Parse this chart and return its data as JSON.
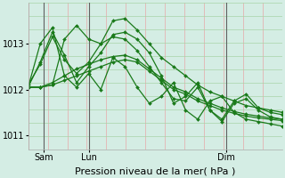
{
  "bg_color": "#d4ede4",
  "grid_color_v": "#e8a8a8",
  "grid_color_h": "#a8d4a8",
  "line_color": "#1a7a1a",
  "marker": "D",
  "markersize": 2.0,
  "linewidth": 0.9,
  "xlabel": "Pression niveau de la mer( hPa )",
  "xlabel_fontsize": 8,
  "tick_fontsize": 7,
  "ylim": [
    1010.7,
    1013.9
  ],
  "yticks": [
    1011,
    1012,
    1013
  ],
  "xlim": [
    0,
    100
  ],
  "xtick_positions": [
    6,
    24,
    78
  ],
  "xtick_labels": [
    "Sam",
    "Lun",
    "Dim"
  ],
  "vline_positions": [
    6,
    24,
    78
  ],
  "n_vgrid": 14,
  "n_hgrid": 12,
  "series": [
    [
      1012.05,
      1012.05,
      1012.1,
      1013.1,
      1013.4,
      1013.1,
      1013.0,
      1013.5,
      1013.55,
      1013.3,
      1013.0,
      1012.7,
      1012.5,
      1012.3,
      1012.1,
      1011.95,
      1011.85,
      1011.75,
      1011.65,
      1011.6,
      1011.55,
      1011.5
    ],
    [
      1012.1,
      1012.55,
      1013.15,
      1012.65,
      1012.35,
      1012.6,
      1013.0,
      1013.15,
      1013.1,
      1012.85,
      1012.5,
      1012.15,
      1011.8,
      1011.75,
      1012.05,
      1011.55,
      1011.3,
      1011.7,
      1011.8,
      1011.55,
      1011.4,
      1011.35
    ],
    [
      1012.05,
      1012.05,
      1012.1,
      1012.2,
      1012.3,
      1012.4,
      1012.5,
      1012.6,
      1012.65,
      1012.6,
      1012.4,
      1012.2,
      1012.0,
      1011.9,
      1011.75,
      1011.65,
      1011.55,
      1011.48,
      1011.42,
      1011.38,
      1011.35,
      1011.32
    ],
    [
      1012.05,
      1012.05,
      1012.15,
      1012.3,
      1012.45,
      1012.55,
      1012.65,
      1012.72,
      1012.75,
      1012.65,
      1012.45,
      1012.25,
      1012.05,
      1011.95,
      1011.8,
      1011.7,
      1011.6,
      1011.52,
      1011.46,
      1011.42,
      1011.38,
      1011.35
    ],
    [
      1012.05,
      1013.0,
      1013.35,
      1012.3,
      1012.05,
      1012.35,
      1012.0,
      1012.7,
      1012.5,
      1012.05,
      1011.7,
      1011.85,
      1012.15,
      1011.55,
      1011.35,
      1011.75,
      1011.85,
      1011.5,
      1011.35,
      1011.3,
      1011.25,
      1011.2
    ],
    [
      1012.05,
      1012.6,
      1013.25,
      1012.75,
      1012.15,
      1012.5,
      1012.8,
      1013.2,
      1013.25,
      1013.1,
      1012.8,
      1012.3,
      1011.7,
      1011.85,
      1012.15,
      1011.55,
      1011.35,
      1011.75,
      1011.9,
      1011.6,
      1011.5,
      1011.45
    ]
  ]
}
